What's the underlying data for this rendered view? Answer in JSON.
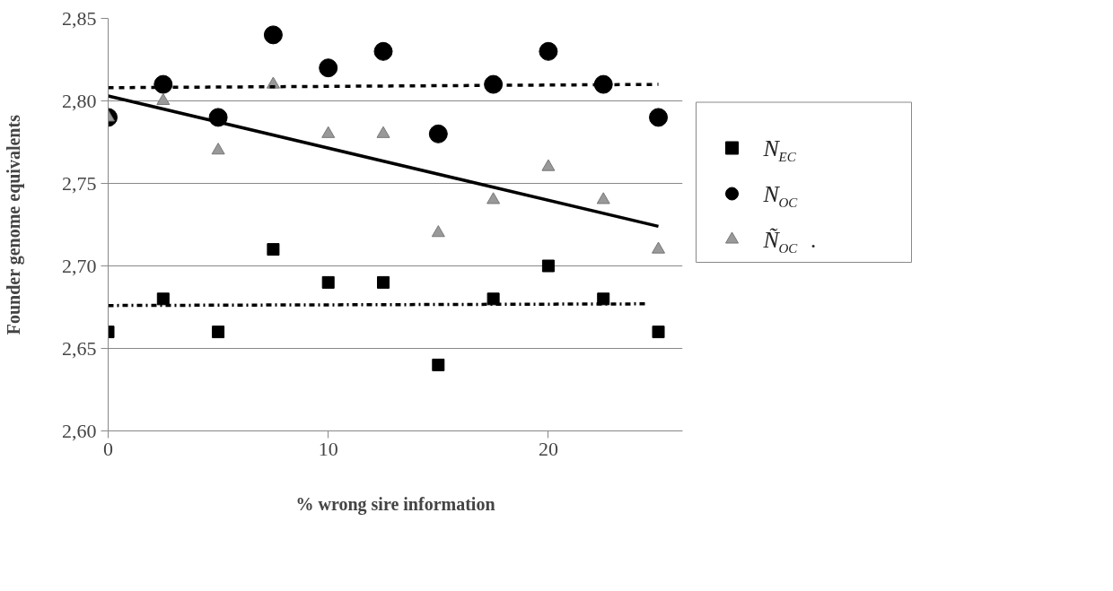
{
  "chart_data": {
    "type": "scatter",
    "xlabel": "% wrong sire information",
    "ylabel": "Founder genome equivalents",
    "x": [
      0,
      2.5,
      5,
      7.5,
      10,
      12.5,
      15,
      17.5,
      20,
      22.5,
      25
    ],
    "series": [
      {
        "name": "N$_{EC}$",
        "color": "#000000",
        "marker": "square",
        "values": [
          2.66,
          2.68,
          2.66,
          2.71,
          2.69,
          2.69,
          2.64,
          2.68,
          2.7,
          2.68,
          2.66
        ]
      },
      {
        "name": "N$_{OC}$",
        "color": "#000000",
        "marker": "circle",
        "values": [
          2.79,
          2.81,
          2.79,
          2.84,
          2.82,
          2.83,
          2.78,
          2.81,
          2.83,
          2.81,
          2.79
        ]
      },
      {
        "name": "Ñ$_{OC}$ .",
        "color": "#999999",
        "marker": "triangle",
        "values": [
          2.79,
          2.8,
          2.77,
          2.81,
          2.78,
          2.78,
          2.72,
          2.74,
          2.76,
          2.74,
          2.71
        ]
      },
      {
        "type": "line",
        "color": "#000000",
        "line_style": "dashdot",
        "x": [
          0,
          24.5
        ],
        "values": [
          2.676,
          2.677
        ]
      },
      {
        "type": "line",
        "color": "#000000",
        "line_style": "dashed",
        "x": [
          0,
          25
        ],
        "values": [
          2.808,
          2.81
        ]
      },
      {
        "type": "line",
        "color": "#000000",
        "line_style": "solid",
        "x": [
          0,
          25
        ],
        "values": [
          2.803,
          2.724
        ]
      }
    ],
    "xlim": [
      0,
      26.1
    ],
    "xticks": [
      0,
      10,
      20
    ],
    "ylim": [
      2.6,
      2.85
    ],
    "yticks": [
      {
        "value": 2.6,
        "label": "2,60"
      },
      {
        "value": 2.65,
        "label": "2,65"
      },
      {
        "value": 2.7,
        "label": "2,70"
      },
      {
        "value": 2.75,
        "label": "2,75"
      },
      {
        "value": 2.8,
        "label": "2,80"
      },
      {
        "value": 2.85,
        "label": "2,85"
      }
    ],
    "grid": "y",
    "legend": "right"
  }
}
